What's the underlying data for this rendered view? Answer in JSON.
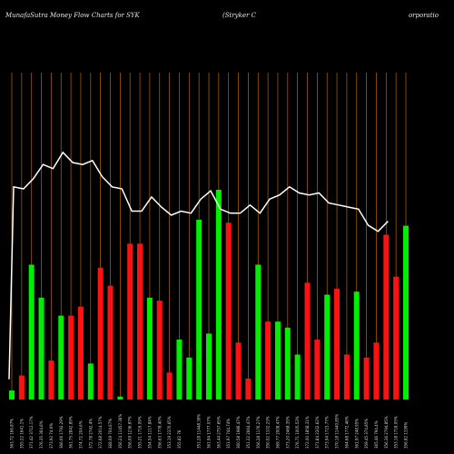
{
  "header": {
    "title_left": "MunafaSutra  Money Flow  Charts for SYK",
    "title_right_a": "(Stryker C",
    "title_right_b": "orporatio"
  },
  "colors": {
    "background": "#000000",
    "grid": "#b8660b",
    "line": "#ffffff",
    "up": "#00ee00",
    "down": "#ff1111"
  },
  "chart_data": {
    "type": "bar",
    "title": "MunafaSutra  Money Flow  Charts for SYK (Stryker Corporation)",
    "grid": "vertical",
    "categories": [
      "363.72 166.87%",
      "355.22 1641.1%",
      "371.42 3712.17%",
      "376.35 364.8%",
      "373.92 74.6%",
      "366.06 1792.29%",
      "361.75 2842.89%",
      "374.72 204.6%",
      "372.78 2742.4%",
      "372.68 2014.57%",
      "368.09 704.67%",
      "356.24 11457.36%",
      "356.09 1236.87%",
      "355.21 1716.09%",
      "354.54 1117.84%",
      "356.63 1778.40%",
      "353.19 2370.65%",
      "355.82 76",
      "",
      "351.28 11448.39%",
      "361.94 1777.07%",
      "363.44 2757.65%",
      "351.97 744.74%",
      "360.58 1986.47%",
      "351.22 2664.47%",
      "356.28 1176.27%",
      "350.02 1102.23%",
      "369.77 2008.47%",
      "373.20 2468.35%",
      "376.71 1005.53%",
      "372.00 1858.31%",
      "371.84 2202.62%",
      "373.94 1723.77%",
      "370.18 11440.85%",
      "364.68 1772.46%",
      "361.97 248.95%",
      "359.45 374.85%",
      "365.46 794.4%",
      "356.36 2794.85%",
      "353.18 1718.05%",
      "356.82 1199%"
    ],
    "values": [
      3,
      8,
      45,
      34,
      13,
      28,
      28,
      31,
      12,
      44,
      38,
      1,
      52,
      52,
      34,
      33,
      9,
      20,
      14,
      60,
      22,
      70,
      59,
      19,
      7,
      45,
      26,
      26,
      24,
      15,
      39,
      20,
      35,
      37,
      15,
      36,
      14,
      19,
      55,
      41,
      58
    ],
    "directions": [
      "up",
      "down",
      "up",
      "up",
      "down",
      "up",
      "down",
      "down",
      "up",
      "down",
      "down",
      "up",
      "down",
      "down",
      "up",
      "down",
      "down",
      "up",
      "up",
      "up",
      "up",
      "up",
      "down",
      "down",
      "down",
      "up",
      "down",
      "up",
      "up",
      "up",
      "down",
      "down",
      "up",
      "down",
      "down",
      "up",
      "down",
      "down",
      "down",
      "down",
      "up"
    ],
    "price_line": [
      0,
      4,
      5,
      7,
      7,
      9,
      8,
      9,
      7,
      7,
      7,
      4,
      4,
      5,
      5,
      4,
      4,
      4,
      5,
      6,
      5,
      5,
      5,
      5,
      5,
      6,
      6,
      6,
      7,
      7,
      7,
      7,
      6,
      6,
      6,
      5,
      5,
      4,
      3,
      4
    ],
    "price_values": [
      290,
      385,
      384,
      389,
      396,
      394,
      402,
      397,
      396,
      398,
      390,
      385,
      384,
      373,
      373,
      380,
      375,
      371,
      373,
      372,
      379,
      383,
      374,
      372,
      372,
      376,
      372,
      379,
      381,
      385,
      382,
      381,
      382,
      377,
      376,
      375,
      374,
      366,
      363,
      368
    ],
    "ylim": [
      0,
      100
    ]
  }
}
